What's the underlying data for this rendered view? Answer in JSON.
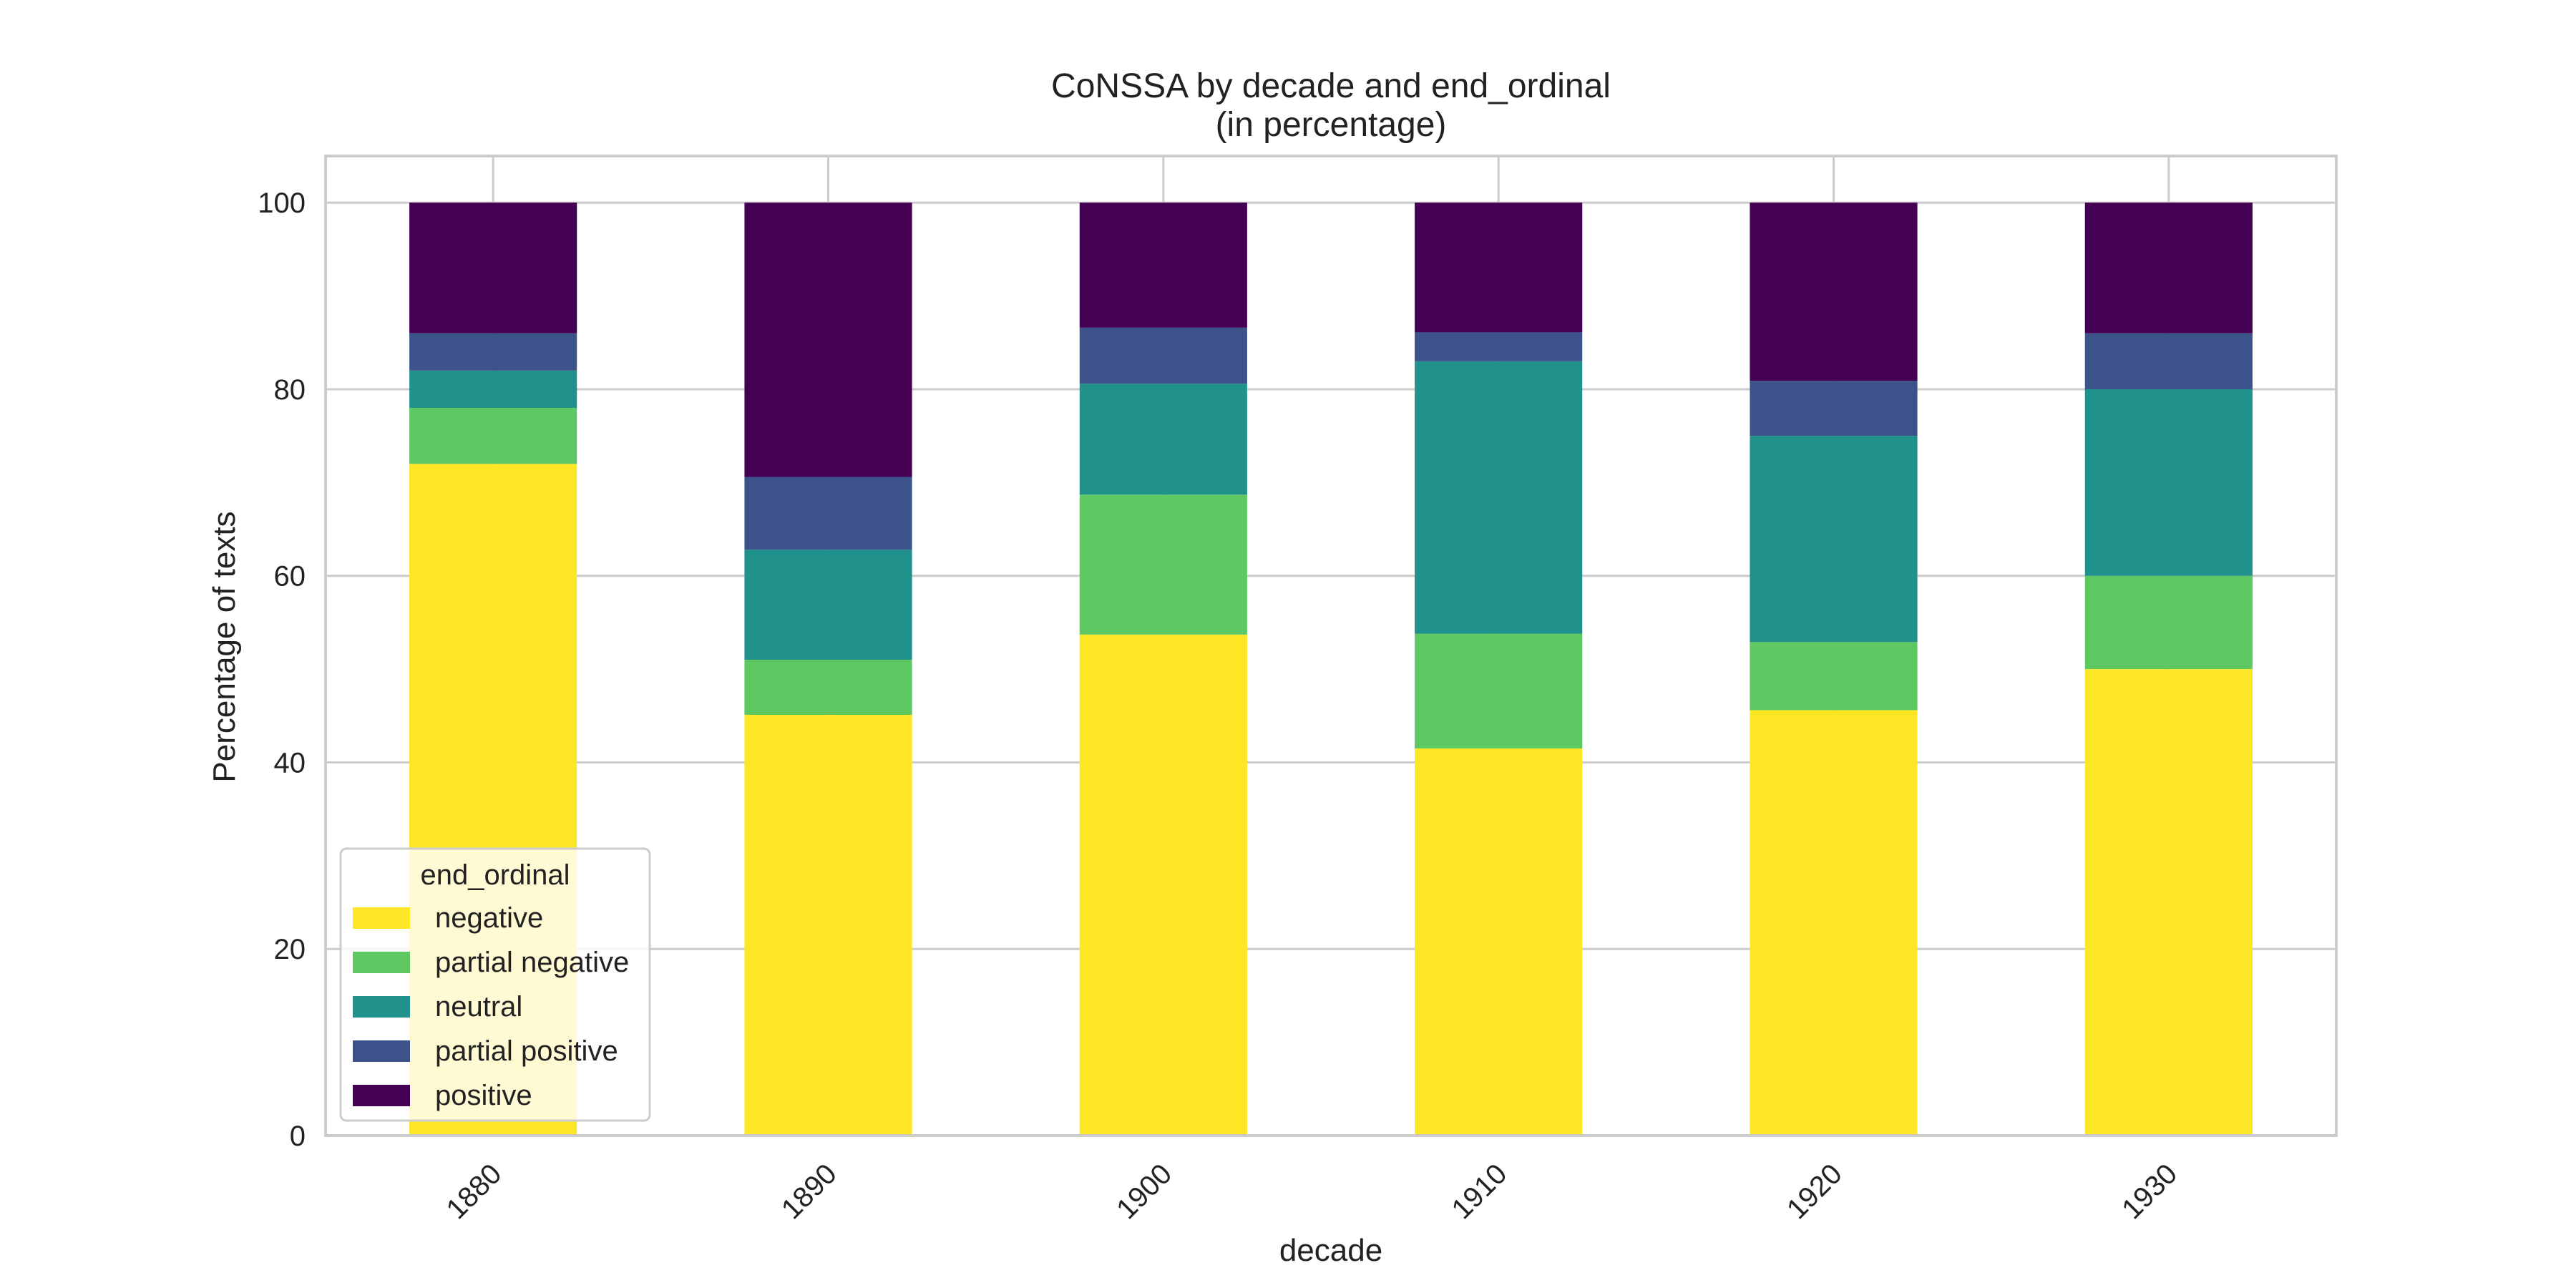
{
  "chart_data": {
    "type": "bar",
    "stacked": true,
    "title": "CoNSSA by decade and end_ordinal",
    "subtitle": "(in percentage)",
    "xlabel": "decade",
    "ylabel": "Percentage of texts",
    "categories": [
      "1880",
      "1890",
      "1900",
      "1910",
      "1920",
      "1930"
    ],
    "ylim": [
      0,
      105
    ],
    "yticks": [
      0,
      20,
      40,
      60,
      80,
      100
    ],
    "grid": true,
    "legend": {
      "title": "end_ordinal",
      "placement": "lower-left"
    },
    "series": [
      {
        "name": "negative",
        "color": "#fde725",
        "values": [
          72.0,
          45.1,
          53.7,
          41.5,
          45.6,
          50.0
        ]
      },
      {
        "name": "partial negative",
        "color": "#5ec962",
        "values": [
          6.0,
          5.9,
          15.0,
          12.3,
          7.3,
          10.0
        ]
      },
      {
        "name": "neutral",
        "color": "#21918c",
        "values": [
          4.0,
          11.8,
          11.9,
          29.2,
          22.1,
          20.0
        ]
      },
      {
        "name": "partial positive",
        "color": "#3b528b",
        "values": [
          4.0,
          7.8,
          6.0,
          3.1,
          5.9,
          6.0
        ]
      },
      {
        "name": "positive",
        "color": "#440154",
        "values": [
          14.0,
          29.4,
          13.4,
          13.9,
          19.1,
          14.0
        ]
      }
    ]
  }
}
